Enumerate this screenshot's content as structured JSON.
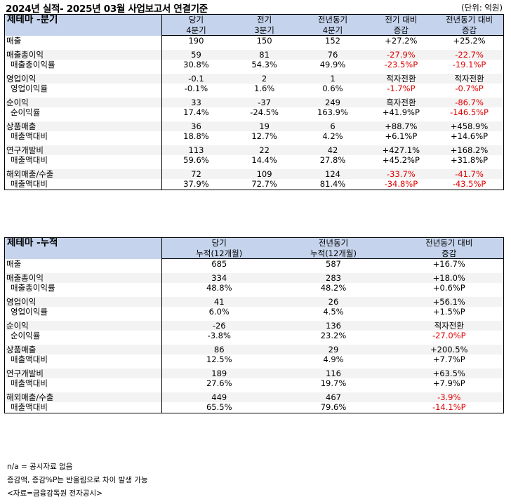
{
  "title": "2024년 실적- 2025년 03월 사업보고서 연결기준",
  "unit": "(단위: 억원)",
  "quarter": {
    "section": "제테마 -분기",
    "headers": [
      [
        "당기",
        "4분기"
      ],
      [
        "전기",
        "3분기"
      ],
      [
        "전년동기",
        "4분기"
      ],
      [
        "전기 대비",
        "증감"
      ],
      [
        "전년동기 대비",
        "증감"
      ]
    ],
    "groups": [
      {
        "main": {
          "label": "매출",
          "values": [
            "190",
            "150",
            "152",
            "+27.2%",
            "+25.2%"
          ]
        }
      },
      {
        "main": {
          "label": "매출총이익",
          "values": [
            "59",
            "81",
            "76",
            "-27.9%",
            "-22.7%"
          ]
        },
        "sub": {
          "label": "매출총이익률",
          "values": [
            "30.8%",
            "54.3%",
            "49.9%",
            "-23.5%P",
            "-19.1%P"
          ]
        }
      },
      {
        "main": {
          "label": "영업이익",
          "values": [
            "-0.1",
            "2",
            "1",
            "적자전환",
            "적자전환"
          ]
        },
        "sub": {
          "label": "영업이익률",
          "values": [
            "-0.1%",
            "1.6%",
            "0.6%",
            "-1.7%P",
            "-0.7%P"
          ]
        }
      },
      {
        "main": {
          "label": "순이익",
          "values": [
            "33",
            "-37",
            "249",
            "흑자전환",
            "-86.7%"
          ]
        },
        "sub": {
          "label": "순이익률",
          "values": [
            "17.4%",
            "-24.5%",
            "163.9%",
            "+41.9%P",
            "-146.5%P"
          ]
        }
      },
      {
        "main": {
          "label": "상품매출",
          "values": [
            "36",
            "19",
            "6",
            "+88.7%",
            "+458.9%"
          ]
        },
        "sub": {
          "label": "매출액대비",
          "values": [
            "18.8%",
            "12.7%",
            "4.2%",
            "+6.1%P",
            "+14.6%P"
          ]
        }
      },
      {
        "main": {
          "label": "연구개발비",
          "values": [
            "113",
            "22",
            "42",
            "+427.1%",
            "+168.2%"
          ]
        },
        "sub": {
          "label": "매출액대비",
          "values": [
            "59.6%",
            "14.4%",
            "27.8%",
            "+45.2%P",
            "+31.8%P"
          ]
        }
      },
      {
        "main": {
          "label": "해외매출/수출",
          "values": [
            "72",
            "109",
            "124",
            "-33.7%",
            "-41.7%"
          ]
        },
        "sub": {
          "label": "매출액대비",
          "values": [
            "37.9%",
            "72.7%",
            "81.4%",
            "-34.8%P",
            "-43.5%P"
          ]
        }
      }
    ]
  },
  "cumulative": {
    "section": "제테마 -누적",
    "headers": [
      [
        "당기",
        "누적(12개월)"
      ],
      [
        "전년동기",
        "누적(12개월)"
      ],
      [
        "전년동기 대비",
        "증감"
      ]
    ],
    "groups": [
      {
        "main": {
          "label": "매출",
          "values": [
            "685",
            "587",
            "+16.7%"
          ]
        }
      },
      {
        "main": {
          "label": "매출총이익",
          "values": [
            "334",
            "283",
            "+18.0%"
          ]
        },
        "sub": {
          "label": "매출총이익률",
          "values": [
            "48.8%",
            "48.2%",
            "+0.6%P"
          ]
        }
      },
      {
        "main": {
          "label": "영업이익",
          "values": [
            "41",
            "26",
            "+56.1%"
          ]
        },
        "sub": {
          "label": "영업이익률",
          "values": [
            "6.0%",
            "4.5%",
            "+1.5%P"
          ]
        }
      },
      {
        "main": {
          "label": "순이익",
          "values": [
            "-26",
            "136",
            "적자전환"
          ]
        },
        "sub": {
          "label": "순이익률",
          "values": [
            "-3.8%",
            "23.2%",
            "-27.0%P"
          ]
        }
      },
      {
        "main": {
          "label": "상품매출",
          "values": [
            "86",
            "29",
            "+200.5%"
          ]
        },
        "sub": {
          "label": "매출액대비",
          "values": [
            "12.5%",
            "4.9%",
            "+7.7%P"
          ]
        }
      },
      {
        "main": {
          "label": "연구개발비",
          "values": [
            "189",
            "116",
            "+63.5%"
          ]
        },
        "sub": {
          "label": "매출액대비",
          "values": [
            "27.6%",
            "19.7%",
            "+7.9%P"
          ]
        }
      },
      {
        "main": {
          "label": "해외매출/수출",
          "values": [
            "449",
            "467",
            "-3.9%"
          ]
        },
        "sub": {
          "label": "매출액대비",
          "values": [
            "65.5%",
            "79.6%",
            "-14.1%P"
          ]
        }
      }
    ]
  },
  "notes": [
    "n/a = 공시자료 없음",
    "증감액, 증감%P는 반올림으로 차이 발생 가능",
    "<자료=금융감독원 전자공시>"
  ],
  "colors": {
    "header_bg": "#c5d3ec",
    "row_bg": "#f3f3f3",
    "negative": "#e00000"
  }
}
